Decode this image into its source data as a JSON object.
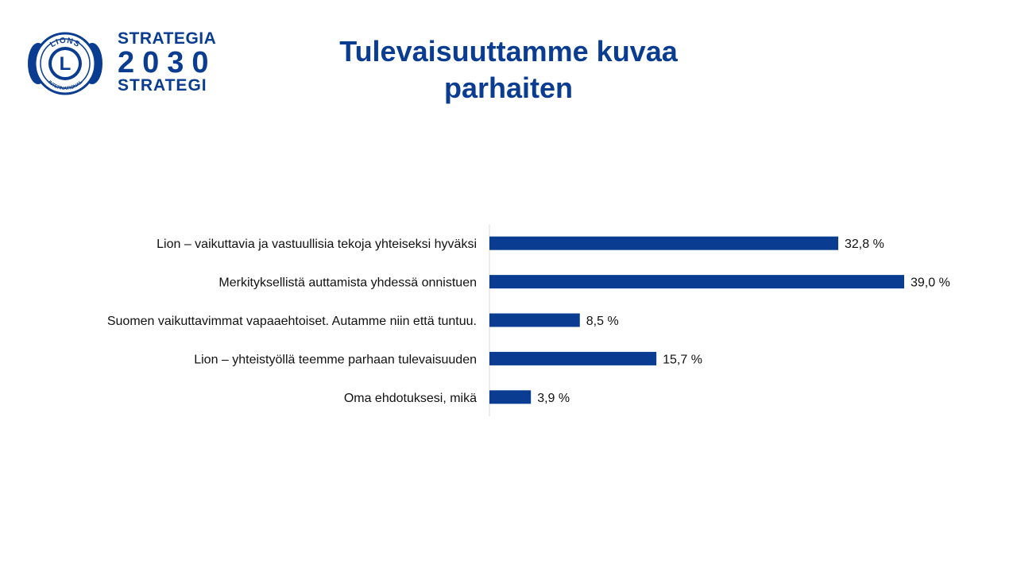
{
  "logo": {
    "line1": "STRATEGIA",
    "line2": "2030",
    "line3": "STRATEGI",
    "seal_letter": "L",
    "seal_top": "LIONS",
    "seal_bottom": "INTERNATIONAL",
    "color": "#0a3d91"
  },
  "title": {
    "line1": "Tulevaisuuttamme kuvaa",
    "line2": "parhaiten"
  },
  "chart_data": {
    "type": "bar",
    "orientation": "horizontal",
    "categories": [
      "Lion – vaikuttavia ja vastuullisia tekoja yhteiseksi hyväksi",
      "Merkityksellistä auttamista yhdessä onnistuen",
      "Suomen vaikuttavimmat vapaaehtoiset. Autamme niin että tuntuu.",
      "Lion – yhteistyöllä teemme parhaan tulevaisuuden",
      "Oma ehdotuksesi, mikä"
    ],
    "values": [
      32.8,
      39.0,
      8.5,
      15.7,
      3.9
    ],
    "value_labels": [
      "32,8 %",
      "39,0 %",
      "8,5 %",
      "15,7 %",
      "3,9 %"
    ],
    "bar_color": "#0a3d91",
    "xlim": [
      0,
      39.0
    ],
    "grid": false,
    "legend": "none"
  }
}
